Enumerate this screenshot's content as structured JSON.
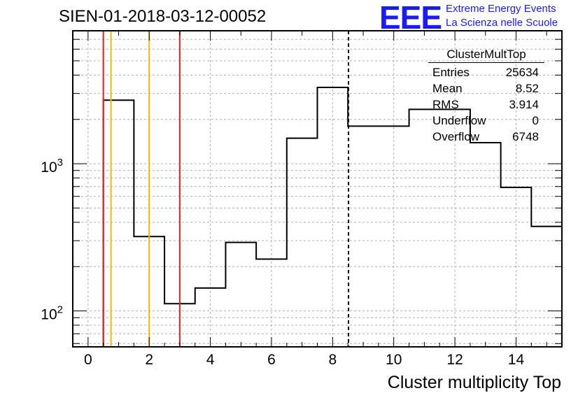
{
  "title": "SIEN-01-2018-03-12-00052",
  "logo": {
    "text": "EEE",
    "line1": "Extreme Energy Events",
    "line2": "La Scienza nelle Scuole",
    "color": "#1a1aff"
  },
  "stats": {
    "title": "ClusterMultTop",
    "rows": [
      {
        "label": "Entries",
        "value": "25634"
      },
      {
        "label": "Mean",
        "value": "8.52"
      },
      {
        "label": "RMS",
        "value": "3.914"
      },
      {
        "label": "Underflow",
        "value": "0"
      },
      {
        "label": "Overflow",
        "value": "6748"
      }
    ]
  },
  "chart_data": {
    "type": "histogram",
    "xlabel": "Cluster multiplicity Top",
    "ylabel": "",
    "xlim": [
      -0.5,
      15.5
    ],
    "ylim": [
      57,
      8000
    ],
    "yscale": "log",
    "grid": true,
    "xticks": [
      0,
      2,
      4,
      6,
      8,
      10,
      12,
      14
    ],
    "yticks": [
      {
        "value": 100,
        "label": "10",
        "exp": "2"
      },
      {
        "value": 1000,
        "label": "10",
        "exp": "3"
      }
    ],
    "bin_edges": [
      0.5,
      1.5,
      2.5,
      3.5,
      4.5,
      5.5,
      6.5,
      7.5,
      8.5,
      9.5,
      10.5,
      11.5,
      12.5,
      13.5,
      14.5,
      15.5
    ],
    "values": [
      2700,
      320,
      112,
      143,
      292,
      225,
      1490,
      3300,
      1800,
      1800,
      2340,
      2340,
      1390,
      690,
      375
    ],
    "vertical_lines": [
      {
        "x": 0.5,
        "color": "#e8221a",
        "style": "solid"
      },
      {
        "x": 0.75,
        "color": "#f5b800",
        "style": "solid"
      },
      {
        "x": 2.0,
        "color": "#f5b800",
        "style": "solid"
      },
      {
        "x": 3.0,
        "color": "#e8221a",
        "style": "solid"
      },
      {
        "x": 8.52,
        "color": "#000000",
        "style": "dashed"
      }
    ]
  }
}
